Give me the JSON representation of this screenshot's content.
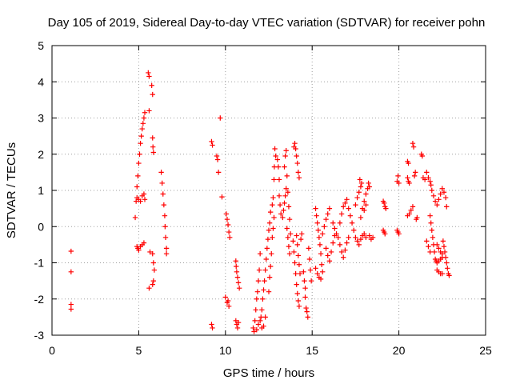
{
  "chart_data": {
    "type": "scatter",
    "title": "Day 105 of 2019, Sidereal Day-to-day VTEC variation (SDTVAR) for receiver pohn",
    "xlabel": "GPS time / hours",
    "ylabel": "SDTVAR / TECUs",
    "xlim": [
      0,
      25
    ],
    "ylim": [
      -3,
      5
    ],
    "xticks": [
      0,
      5,
      10,
      15,
      20,
      25
    ],
    "yticks": [
      -3,
      -2,
      -1,
      0,
      1,
      2,
      3,
      4,
      5
    ],
    "grid": true,
    "marker": "+",
    "color": "#ff0000",
    "series": [
      {
        "name": "SDTVAR",
        "points": [
          [
            1.1,
            -0.68
          ],
          [
            1.1,
            -1.25
          ],
          [
            1.1,
            -2.15
          ],
          [
            1.1,
            -2.28
          ],
          [
            4.8,
            0.25
          ],
          [
            4.85,
            0.7
          ],
          [
            4.9,
            1.1
          ],
          [
            4.95,
            1.4
          ],
          [
            5.0,
            1.75
          ],
          [
            5.05,
            2.0
          ],
          [
            5.1,
            2.3
          ],
          [
            5.15,
            2.5
          ],
          [
            5.2,
            2.7
          ],
          [
            5.25,
            2.85
          ],
          [
            5.3,
            3.0
          ],
          [
            5.35,
            3.15
          ],
          [
            4.9,
            -0.55
          ],
          [
            4.95,
            -0.6
          ],
          [
            5.0,
            -0.65
          ],
          [
            5.1,
            -0.55
          ],
          [
            5.2,
            -0.5
          ],
          [
            5.3,
            -0.45
          ],
          [
            4.9,
            0.8
          ],
          [
            5.0,
            0.75
          ],
          [
            5.1,
            0.7
          ],
          [
            5.2,
            0.85
          ],
          [
            5.3,
            0.9
          ],
          [
            5.35,
            0.75
          ],
          [
            5.55,
            4.25
          ],
          [
            5.6,
            4.15
          ],
          [
            5.6,
            3.2
          ],
          [
            5.6,
            -1.7
          ],
          [
            5.65,
            -0.7
          ],
          [
            5.75,
            3.9
          ],
          [
            5.8,
            3.65
          ],
          [
            5.8,
            2.45
          ],
          [
            5.82,
            2.2
          ],
          [
            5.85,
            2.05
          ],
          [
            5.8,
            -0.75
          ],
          [
            5.85,
            -1.0
          ],
          [
            5.9,
            -1.2
          ],
          [
            5.85,
            -1.5
          ],
          [
            5.8,
            -1.6
          ],
          [
            6.3,
            1.5
          ],
          [
            6.35,
            1.2
          ],
          [
            6.4,
            0.9
          ],
          [
            6.45,
            0.6
          ],
          [
            6.5,
            0.3
          ],
          [
            6.52,
            0.0
          ],
          [
            6.55,
            -0.3
          ],
          [
            6.6,
            -0.6
          ],
          [
            6.6,
            -0.75
          ],
          [
            9.2,
            2.35
          ],
          [
            9.25,
            2.25
          ],
          [
            9.2,
            -2.7
          ],
          [
            9.25,
            -2.8
          ],
          [
            9.5,
            1.95
          ],
          [
            9.55,
            1.85
          ],
          [
            9.6,
            1.5
          ],
          [
            9.7,
            3.0
          ],
          [
            9.8,
            0.82
          ],
          [
            10.05,
            0.35
          ],
          [
            10.1,
            0.2
          ],
          [
            10.15,
            0.05
          ],
          [
            10.2,
            -0.15
          ],
          [
            10.25,
            -0.3
          ],
          [
            10.0,
            -1.95
          ],
          [
            10.1,
            -2.1
          ],
          [
            10.2,
            -2.2
          ],
          [
            10.15,
            -2.05
          ],
          [
            10.6,
            -0.95
          ],
          [
            10.62,
            -1.1
          ],
          [
            10.65,
            -1.25
          ],
          [
            10.7,
            -1.4
          ],
          [
            10.75,
            -1.55
          ],
          [
            10.8,
            -1.7
          ],
          [
            10.6,
            -2.6
          ],
          [
            10.65,
            -2.7
          ],
          [
            10.7,
            -2.8
          ],
          [
            10.75,
            -2.65
          ],
          [
            11.6,
            -2.8
          ],
          [
            11.7,
            -2.6
          ],
          [
            11.75,
            -2.3
          ],
          [
            11.8,
            -2.0
          ],
          [
            11.85,
            -1.8
          ],
          [
            11.9,
            -1.5
          ],
          [
            11.95,
            -1.2
          ],
          [
            12.0,
            -0.75
          ],
          [
            11.65,
            -2.9
          ],
          [
            11.8,
            -2.85
          ],
          [
            11.9,
            -2.7
          ],
          [
            12.0,
            -2.6
          ],
          [
            12.05,
            -2.5
          ],
          [
            12.1,
            -2.3
          ],
          [
            12.15,
            -2.0
          ],
          [
            12.2,
            -1.75
          ],
          [
            12.25,
            -1.5
          ],
          [
            12.3,
            -1.2
          ],
          [
            12.35,
            -0.9
          ],
          [
            12.4,
            -0.6
          ],
          [
            12.45,
            -0.35
          ],
          [
            12.5,
            -0.1
          ],
          [
            12.55,
            0.1
          ],
          [
            12.6,
            0.4
          ],
          [
            12.1,
            -2.8
          ],
          [
            12.2,
            -2.75
          ],
          [
            12.3,
            -2.5
          ],
          [
            12.5,
            -1.8
          ],
          [
            12.55,
            -1.4
          ],
          [
            12.6,
            -1.1
          ],
          [
            12.65,
            -0.75
          ],
          [
            12.7,
            0.6
          ],
          [
            12.75,
            0.8
          ],
          [
            12.8,
            1.3
          ],
          [
            12.82,
            1.65
          ],
          [
            12.85,
            2.15
          ],
          [
            12.9,
            1.95
          ],
          [
            12.7,
            -0.3
          ],
          [
            12.75,
            -0.05
          ],
          [
            12.8,
            0.25
          ],
          [
            13.0,
            1.85
          ],
          [
            13.05,
            1.65
          ],
          [
            13.1,
            1.3
          ],
          [
            13.1,
            0.85
          ],
          [
            13.15,
            0.6
          ],
          [
            13.2,
            0.35
          ],
          [
            13.3,
            0.25
          ],
          [
            13.35,
            0.45
          ],
          [
            13.4,
            0.65
          ],
          [
            13.45,
            0.85
          ],
          [
            13.5,
            1.05
          ],
          [
            13.4,
            1.65
          ],
          [
            13.45,
            1.95
          ],
          [
            13.5,
            2.1
          ],
          [
            13.55,
            1.4
          ],
          [
            13.6,
            0.95
          ],
          [
            13.65,
            0.55
          ],
          [
            13.7,
            0.2
          ],
          [
            13.75,
            -0.2
          ],
          [
            13.55,
            -0.05
          ],
          [
            13.6,
            -0.3
          ],
          [
            13.65,
            -0.55
          ],
          [
            13.7,
            -0.75
          ],
          [
            13.9,
            -0.4
          ],
          [
            13.95,
            -0.7
          ],
          [
            14.0,
            -1.0
          ],
          [
            14.05,
            -1.3
          ],
          [
            14.1,
            -1.6
          ],
          [
            14.15,
            -1.85
          ],
          [
            14.2,
            -2.05
          ],
          [
            14.25,
            -2.2
          ],
          [
            13.95,
            2.2
          ],
          [
            14.0,
            2.3
          ],
          [
            14.05,
            2.15
          ],
          [
            14.1,
            1.95
          ],
          [
            14.15,
            1.75
          ],
          [
            14.2,
            1.5
          ],
          [
            14.25,
            1.35
          ],
          [
            14.1,
            -0.25
          ],
          [
            14.15,
            -0.5
          ],
          [
            14.2,
            -0.8
          ],
          [
            14.25,
            -1.05
          ],
          [
            14.3,
            -1.3
          ],
          [
            14.35,
            -0.35
          ],
          [
            14.4,
            -0.2
          ],
          [
            14.5,
            -1.25
          ],
          [
            14.55,
            -1.5
          ],
          [
            14.6,
            -1.7
          ],
          [
            14.6,
            -1.95
          ],
          [
            14.65,
            -2.25
          ],
          [
            14.7,
            -2.35
          ],
          [
            14.75,
            -2.5
          ],
          [
            14.8,
            -0.6
          ],
          [
            14.85,
            -0.9
          ],
          [
            14.9,
            -1.2
          ],
          [
            14.95,
            -1.5
          ],
          [
            15.2,
            0.5
          ],
          [
            15.25,
            0.3
          ],
          [
            15.3,
            0.1
          ],
          [
            15.35,
            -0.1
          ],
          [
            15.4,
            -0.3
          ],
          [
            15.45,
            -0.5
          ],
          [
            15.5,
            -0.75
          ],
          [
            15.55,
            -1.05
          ],
          [
            15.6,
            -1.25
          ],
          [
            15.2,
            -1.15
          ],
          [
            15.3,
            -1.3
          ],
          [
            15.4,
            -1.4
          ],
          [
            15.5,
            -1.45
          ],
          [
            15.6,
            -0.2
          ],
          [
            15.7,
            0.0
          ],
          [
            15.8,
            0.2
          ],
          [
            15.9,
            0.35
          ],
          [
            16.0,
            0.5
          ],
          [
            15.8,
            -0.6
          ],
          [
            15.9,
            -0.8
          ],
          [
            16.0,
            -0.95
          ],
          [
            16.1,
            -0.7
          ],
          [
            16.2,
            -0.45
          ],
          [
            16.3,
            -0.25
          ],
          [
            16.2,
            0.1
          ],
          [
            16.3,
            -0.05
          ],
          [
            16.4,
            -0.2
          ],
          [
            16.5,
            -0.3
          ],
          [
            16.6,
            0.1
          ],
          [
            16.7,
            0.35
          ],
          [
            16.8,
            0.55
          ],
          [
            16.9,
            0.65
          ],
          [
            17.0,
            0.75
          ],
          [
            16.6,
            -0.5
          ],
          [
            16.7,
            -0.7
          ],
          [
            16.8,
            -0.85
          ],
          [
            16.9,
            -0.65
          ],
          [
            17.0,
            -0.45
          ],
          [
            17.1,
            -0.3
          ],
          [
            17.1,
            0.5
          ],
          [
            17.2,
            0.3
          ],
          [
            17.3,
            0.1
          ],
          [
            17.4,
            -0.1
          ],
          [
            17.5,
            0.6
          ],
          [
            17.6,
            0.8
          ],
          [
            17.7,
            0.95
          ],
          [
            17.8,
            1.1
          ],
          [
            17.5,
            -0.3
          ],
          [
            17.6,
            -0.4
          ],
          [
            17.7,
            -0.5
          ],
          [
            17.8,
            -0.35
          ],
          [
            17.9,
            -0.25
          ],
          [
            18.0,
            -0.2
          ],
          [
            18.1,
            -0.3
          ],
          [
            17.8,
            0.25
          ],
          [
            17.9,
            0.5
          ],
          [
            18.0,
            0.7
          ],
          [
            18.1,
            0.9
          ],
          [
            18.2,
            1.05
          ],
          [
            18.25,
            1.2
          ],
          [
            18.3,
            1.1
          ],
          [
            17.75,
            1.3
          ],
          [
            17.85,
            1.2
          ],
          [
            18.0,
            0.45
          ],
          [
            18.1,
            0.6
          ],
          [
            18.3,
            -0.25
          ],
          [
            18.4,
            -0.35
          ],
          [
            18.5,
            -0.3
          ],
          [
            19.1,
            0.7
          ],
          [
            19.15,
            0.65
          ],
          [
            19.2,
            0.55
          ],
          [
            19.25,
            0.5
          ],
          [
            19.1,
            -0.1
          ],
          [
            19.15,
            -0.15
          ],
          [
            19.2,
            -0.2
          ],
          [
            19.9,
            1.25
          ],
          [
            19.95,
            1.4
          ],
          [
            20.0,
            1.2
          ],
          [
            19.9,
            -0.1
          ],
          [
            19.95,
            -0.15
          ],
          [
            20.0,
            -0.2
          ],
          [
            20.5,
            1.8
          ],
          [
            20.55,
            1.75
          ],
          [
            20.5,
            1.35
          ],
          [
            20.55,
            1.25
          ],
          [
            20.6,
            1.2
          ],
          [
            20.5,
            0.3
          ],
          [
            20.6,
            0.35
          ],
          [
            20.7,
            0.45
          ],
          [
            20.8,
            0.55
          ],
          [
            20.8,
            2.3
          ],
          [
            20.85,
            2.2
          ],
          [
            20.9,
            1.4
          ],
          [
            20.95,
            1.5
          ],
          [
            21.0,
            0.2
          ],
          [
            21.05,
            0.25
          ],
          [
            21.3,
            2.0
          ],
          [
            21.35,
            1.95
          ],
          [
            21.4,
            1.35
          ],
          [
            21.5,
            1.3
          ],
          [
            21.6,
            1.5
          ],
          [
            21.7,
            1.35
          ],
          [
            21.8,
            1.25
          ],
          [
            21.85,
            1.15
          ],
          [
            21.9,
            1.0
          ],
          [
            22.0,
            0.85
          ],
          [
            22.1,
            0.7
          ],
          [
            22.2,
            0.6
          ],
          [
            22.3,
            0.75
          ],
          [
            22.4,
            0.9
          ],
          [
            22.5,
            1.05
          ],
          [
            22.6,
            0.95
          ],
          [
            22.7,
            0.8
          ],
          [
            22.75,
            0.55
          ],
          [
            21.8,
            0.3
          ],
          [
            21.85,
            0.1
          ],
          [
            21.9,
            -0.1
          ],
          [
            21.95,
            -0.3
          ],
          [
            22.0,
            -0.5
          ],
          [
            22.05,
            -0.7
          ],
          [
            22.1,
            -0.9
          ],
          [
            22.15,
            -0.95
          ],
          [
            22.2,
            -1.0
          ],
          [
            22.3,
            -0.95
          ],
          [
            22.4,
            -0.9
          ],
          [
            22.5,
            -0.85
          ],
          [
            21.6,
            -0.4
          ],
          [
            21.7,
            -0.55
          ],
          [
            21.8,
            -0.7
          ],
          [
            22.2,
            -1.2
          ],
          [
            22.3,
            -1.25
          ],
          [
            22.4,
            -1.3
          ],
          [
            22.5,
            -1.3
          ],
          [
            22.55,
            -0.4
          ],
          [
            22.6,
            -0.55
          ],
          [
            22.65,
            -0.7
          ],
          [
            22.7,
            -0.85
          ],
          [
            22.75,
            -1.0
          ],
          [
            22.8,
            -1.15
          ],
          [
            22.85,
            -1.3
          ],
          [
            22.9,
            -1.35
          ],
          [
            22.2,
            -0.5
          ],
          [
            22.3,
            -0.6
          ],
          [
            22.4,
            -0.7
          ],
          [
            22.5,
            -0.75
          ]
        ]
      }
    ]
  }
}
